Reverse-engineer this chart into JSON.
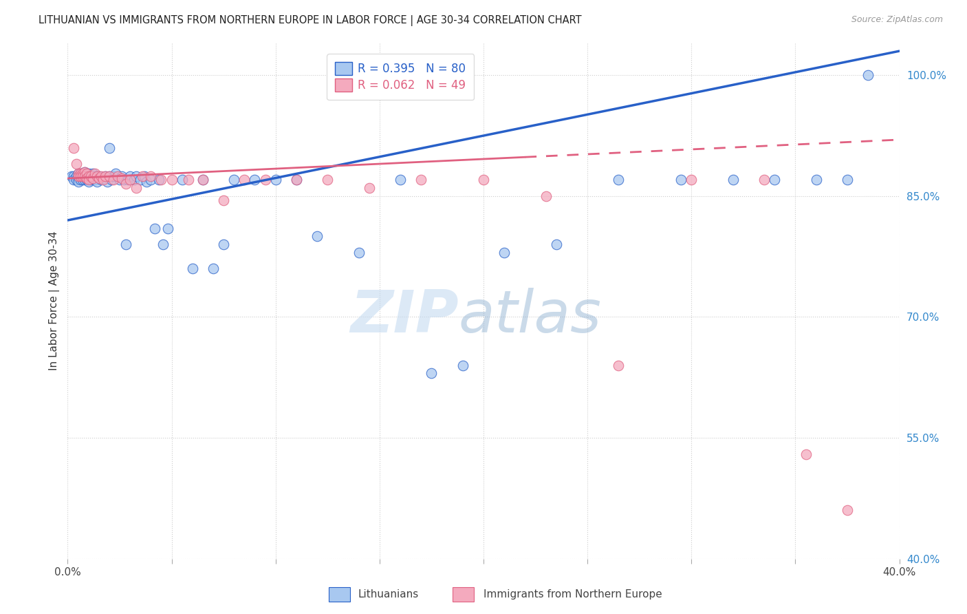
{
  "title": "LITHUANIAN VS IMMIGRANTS FROM NORTHERN EUROPE IN LABOR FORCE | AGE 30-34 CORRELATION CHART",
  "source": "Source: ZipAtlas.com",
  "ylabel": "In Labor Force | Age 30-34",
  "ylabel_tick_vals": [
    1.0,
    0.85,
    0.7,
    0.55,
    0.4
  ],
  "xmin": 0.0,
  "xmax": 0.4,
  "ymin": 0.4,
  "ymax": 1.04,
  "R_blue": 0.395,
  "N_blue": 80,
  "R_pink": 0.062,
  "N_pink": 49,
  "blue_color": "#A8C8F0",
  "pink_color": "#F4AABE",
  "trend_blue": "#2860C8",
  "trend_pink": "#E06080",
  "watermark_1": "ZIP",
  "watermark_2": "atlas",
  "blue_trend_x0": 0.0,
  "blue_trend_y0": 0.82,
  "blue_trend_x1": 0.4,
  "blue_trend_y1": 1.03,
  "pink_trend_x0": 0.0,
  "pink_trend_y0": 0.872,
  "pink_trend_x1": 0.4,
  "pink_trend_y1": 0.92,
  "blue_x": [
    0.002,
    0.003,
    0.003,
    0.004,
    0.004,
    0.005,
    0.005,
    0.005,
    0.006,
    0.006,
    0.006,
    0.007,
    0.007,
    0.007,
    0.008,
    0.008,
    0.008,
    0.009,
    0.009,
    0.009,
    0.01,
    0.01,
    0.01,
    0.011,
    0.011,
    0.012,
    0.012,
    0.013,
    0.013,
    0.014,
    0.014,
    0.015,
    0.016,
    0.017,
    0.018,
    0.019,
    0.02,
    0.02,
    0.021,
    0.022,
    0.023,
    0.025,
    0.026,
    0.027,
    0.028,
    0.029,
    0.03,
    0.032,
    0.033,
    0.035,
    0.037,
    0.038,
    0.04,
    0.042,
    0.044,
    0.046,
    0.048,
    0.055,
    0.06,
    0.065,
    0.07,
    0.075,
    0.08,
    0.09,
    0.1,
    0.11,
    0.12,
    0.14,
    0.16,
    0.175,
    0.19,
    0.21,
    0.235,
    0.265,
    0.295,
    0.32,
    0.34,
    0.36,
    0.375,
    0.385
  ],
  "blue_y": [
    0.875,
    0.875,
    0.87,
    0.875,
    0.87,
    0.878,
    0.872,
    0.868,
    0.878,
    0.875,
    0.87,
    0.878,
    0.875,
    0.87,
    0.88,
    0.875,
    0.87,
    0.878,
    0.875,
    0.87,
    0.878,
    0.872,
    0.868,
    0.875,
    0.87,
    0.878,
    0.872,
    0.875,
    0.87,
    0.875,
    0.868,
    0.875,
    0.87,
    0.872,
    0.875,
    0.868,
    0.91,
    0.875,
    0.87,
    0.875,
    0.878,
    0.87,
    0.875,
    0.87,
    0.79,
    0.87,
    0.875,
    0.87,
    0.875,
    0.87,
    0.875,
    0.868,
    0.87,
    0.81,
    0.87,
    0.79,
    0.81,
    0.87,
    0.76,
    0.87,
    0.76,
    0.79,
    0.87,
    0.87,
    0.87,
    0.87,
    0.8,
    0.78,
    0.87,
    0.63,
    0.64,
    0.78,
    0.79,
    0.87,
    0.87,
    0.87,
    0.87,
    0.87,
    0.87,
    1.0
  ],
  "pink_x": [
    0.003,
    0.004,
    0.005,
    0.005,
    0.006,
    0.006,
    0.007,
    0.007,
    0.008,
    0.008,
    0.009,
    0.009,
    0.01,
    0.01,
    0.011,
    0.012,
    0.013,
    0.014,
    0.015,
    0.016,
    0.017,
    0.018,
    0.02,
    0.022,
    0.024,
    0.026,
    0.028,
    0.03,
    0.033,
    0.036,
    0.04,
    0.045,
    0.05,
    0.058,
    0.065,
    0.075,
    0.085,
    0.095,
    0.11,
    0.125,
    0.145,
    0.17,
    0.2,
    0.23,
    0.265,
    0.3,
    0.335,
    0.355,
    0.375
  ],
  "pink_y": [
    0.91,
    0.89,
    0.878,
    0.875,
    0.878,
    0.875,
    0.878,
    0.875,
    0.88,
    0.875,
    0.878,
    0.872,
    0.875,
    0.87,
    0.875,
    0.872,
    0.878,
    0.875,
    0.872,
    0.875,
    0.87,
    0.875,
    0.875,
    0.87,
    0.875,
    0.872,
    0.865,
    0.87,
    0.86,
    0.875,
    0.875,
    0.87,
    0.87,
    0.87,
    0.87,
    0.845,
    0.87,
    0.87,
    0.87,
    0.87,
    0.86,
    0.87,
    0.87,
    0.85,
    0.64,
    0.87,
    0.87,
    0.53,
    0.46
  ]
}
